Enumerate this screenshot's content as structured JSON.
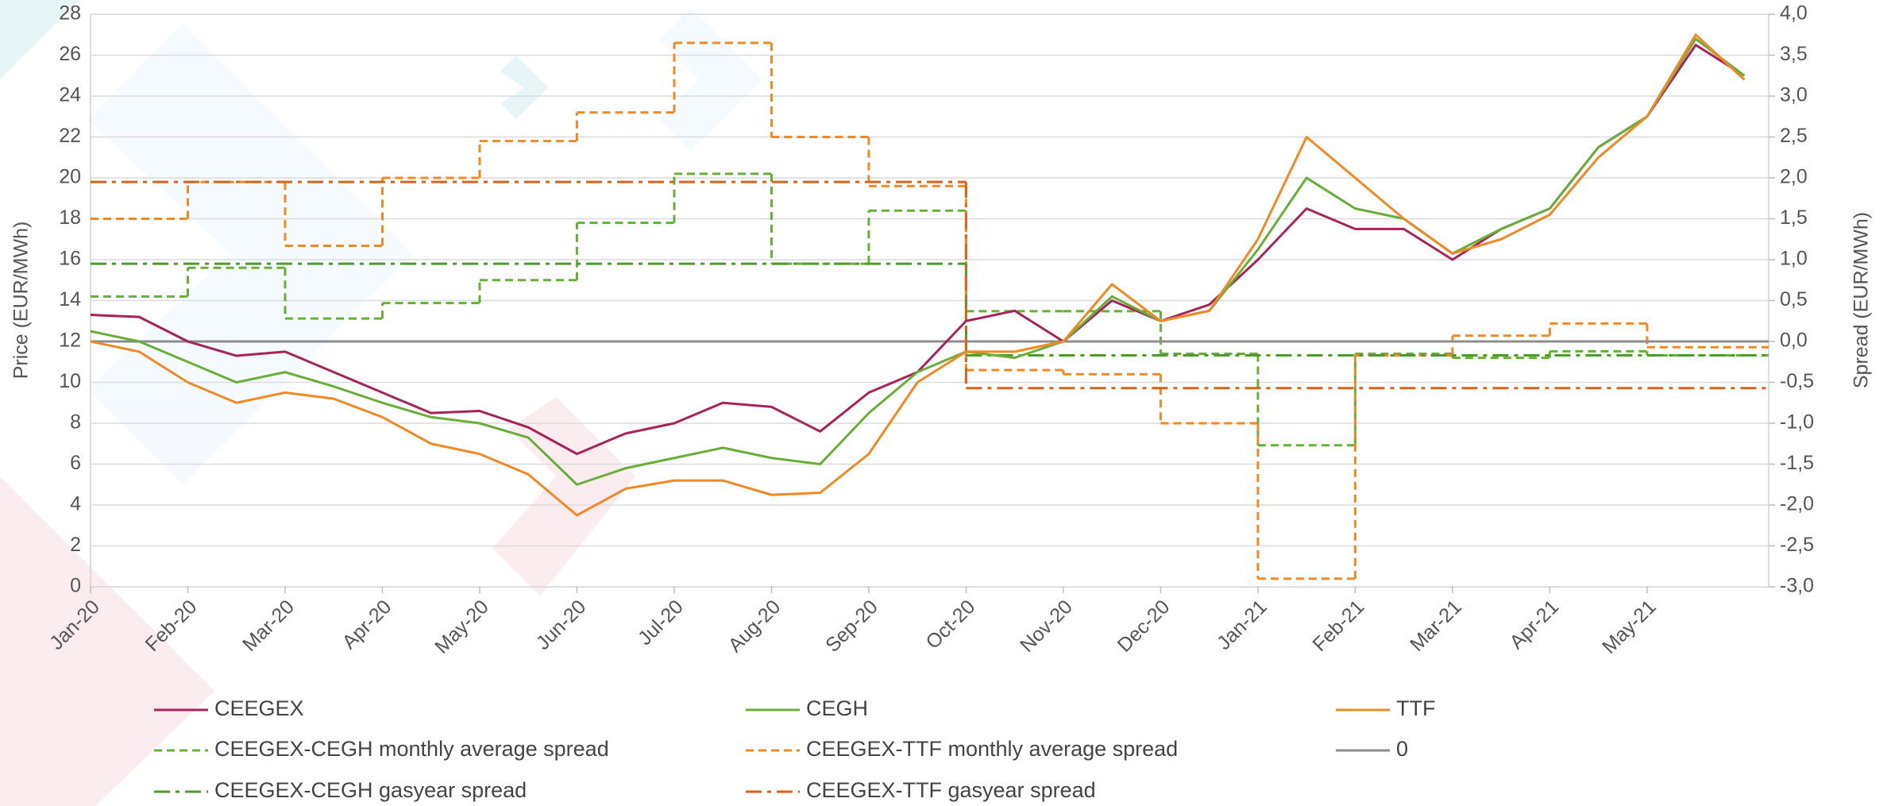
{
  "chart_data": {
    "type": "line",
    "ylabel": "Price (EUR/MWh)",
    "y2label": "Spread (EUR/MWh)",
    "x": [
      0,
      0.5,
      1,
      1.5,
      2,
      2.5,
      3,
      3.5,
      4,
      4.5,
      5,
      5.5,
      6,
      6.5,
      7,
      7.5,
      8,
      8.5,
      9,
      9.5,
      10,
      10.5,
      11,
      11.5,
      12,
      12.5,
      13,
      13.5,
      14,
      14.5,
      15,
      15.5,
      16,
      16.5,
      17
    ],
    "xlim": [
      0,
      17.25
    ],
    "xticks": [
      {
        "value": 0,
        "label": "Jan-20"
      },
      {
        "value": 1,
        "label": "Feb-20"
      },
      {
        "value": 2,
        "label": "Mar-20"
      },
      {
        "value": 3,
        "label": "Apr-20"
      },
      {
        "value": 4,
        "label": "May-20"
      },
      {
        "value": 5,
        "label": "Jun-20"
      },
      {
        "value": 6,
        "label": "Jul-20"
      },
      {
        "value": 7,
        "label": "Aug-20"
      },
      {
        "value": 8,
        "label": "Sep-20"
      },
      {
        "value": 9,
        "label": "Oct-20"
      },
      {
        "value": 10,
        "label": "Nov-20"
      },
      {
        "value": 11,
        "label": "Dec-20"
      },
      {
        "value": 12,
        "label": "Jan-21"
      },
      {
        "value": 13,
        "label": "Feb-21"
      },
      {
        "value": 14,
        "label": "Mar-21"
      },
      {
        "value": 15,
        "label": "Apr-21"
      },
      {
        "value": 16,
        "label": "May-21"
      }
    ],
    "ylim": [
      0,
      28
    ],
    "yticks": [
      0,
      2,
      4,
      6,
      8,
      10,
      12,
      14,
      16,
      18,
      20,
      22,
      24,
      26,
      28
    ],
    "y2lim": [
      -3,
      4
    ],
    "y2ticks": [
      {
        "value": -3,
        "label": "-3,0"
      },
      {
        "value": -2.5,
        "label": "-2,5"
      },
      {
        "value": -2,
        "label": "-2,0"
      },
      {
        "value": -1.5,
        "label": "-1,5"
      },
      {
        "value": -1,
        "label": "-1,0"
      },
      {
        "value": -0.5,
        "label": "-0,5"
      },
      {
        "value": 0,
        "label": "0,0"
      },
      {
        "value": 0.5,
        "label": "0,5"
      },
      {
        "value": 1,
        "label": "1,0"
      },
      {
        "value": 1.5,
        "label": "1,5"
      },
      {
        "value": 2,
        "label": "2,0"
      },
      {
        "value": 2.5,
        "label": "2,5"
      },
      {
        "value": 3,
        "label": "3,0"
      },
      {
        "value": 3.5,
        "label": "3,5"
      },
      {
        "value": 4,
        "label": "4,0"
      }
    ],
    "grid": true,
    "series": [
      {
        "name": "CEEGEX",
        "color": "#a8235a",
        "style": "solid",
        "values": [
          13.3,
          13.2,
          12,
          11.3,
          11.5,
          10.5,
          9.5,
          8.5,
          8.6,
          7.8,
          6.5,
          7.5,
          8.0,
          9,
          8.8,
          7.6,
          9.5,
          10.5,
          13,
          13.5,
          12,
          14,
          13,
          13.8,
          16,
          18.5,
          17.5,
          17.5,
          16,
          17.5,
          18.5,
          21.5,
          23,
          26.5,
          25
        ]
      },
      {
        "name": "CEGH",
        "color": "#6aae3a",
        "style": "solid",
        "values": [
          12.5,
          12,
          11,
          10,
          10.5,
          9.8,
          9,
          8.3,
          8.0,
          7.3,
          5.0,
          5.8,
          6.3,
          6.8,
          6.3,
          6.0,
          8.5,
          10.5,
          11.5,
          11.2,
          12.0,
          14.2,
          13.0,
          13.5,
          16.5,
          20,
          18.5,
          18.0,
          16.3,
          17.5,
          18.5,
          21.5,
          23,
          26.8,
          25
        ]
      },
      {
        "name": "TTF",
        "color": "#f08a24",
        "style": "solid",
        "values": [
          12,
          11.5,
          10,
          9,
          9.5,
          9.2,
          8.3,
          7.0,
          6.5,
          5.5,
          3.5,
          4.8,
          5.2,
          5.2,
          4.5,
          4.6,
          6.5,
          10,
          11.5,
          11.5,
          12,
          14.8,
          13.0,
          13.5,
          17,
          22,
          20,
          18,
          16.3,
          17,
          18.2,
          21.0,
          23,
          27,
          24.8
        ]
      },
      {
        "name": "CEEGEX-CEGH monthly average spread",
        "color": "#6aae3a",
        "style": "dashed",
        "axis": "y2",
        "x": [
          0,
          1,
          2,
          3,
          4,
          5,
          6,
          7,
          8,
          9,
          10,
          11,
          12,
          13,
          14,
          15,
          16
        ],
        "values": [
          0.55,
          0.9,
          0.28,
          0.47,
          0.75,
          1.45,
          2.05,
          0.95,
          1.6,
          0.37,
          0.37,
          -0.15,
          -1.27,
          -0.15,
          -0.2,
          -0.12,
          -0.17
        ]
      },
      {
        "name": "CEEGEX-TTF monthly average spread",
        "color": "#f08a24",
        "style": "dashed",
        "axis": "y2",
        "x": [
          0,
          1,
          2,
          3,
          4,
          5,
          6,
          7,
          8,
          9,
          10,
          11,
          12,
          13,
          14,
          15,
          16
        ],
        "values": [
          1.5,
          1.95,
          1.17,
          2.0,
          2.45,
          2.8,
          3.65,
          2.5,
          1.9,
          -0.35,
          -0.4,
          -1.0,
          -2.9,
          -0.17,
          0.07,
          0.22,
          -0.07
        ]
      },
      {
        "name": "0",
        "color": "#8c8c8c",
        "style": "solid",
        "axis": "y2",
        "x": [
          0
        ],
        "values": [
          0
        ]
      },
      {
        "name": "CEEGEX-CEGH gasyear spread",
        "color": "#4f9a2e",
        "style": "dashdot",
        "axis": "y2",
        "x": [
          0,
          9
        ],
        "values": [
          0.95,
          -0.17
        ]
      },
      {
        "name": "CEEGEX-TTF gasyear spread",
        "color": "#d9641e",
        "style": "dashdot",
        "axis": "y2",
        "x": [
          0,
          9
        ],
        "values": [
          1.95,
          -0.57
        ]
      }
    ]
  }
}
